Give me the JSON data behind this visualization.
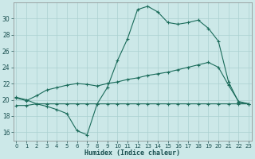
{
  "xlabel": "Humidex (Indice chaleur)",
  "bg_color": "#cce8e8",
  "grid_color": "#aad0d0",
  "line_color": "#1a6b5a",
  "xlim": [
    -0.3,
    23.3
  ],
  "ylim": [
    15.0,
    32.0
  ],
  "xticks": [
    0,
    1,
    2,
    3,
    4,
    5,
    6,
    7,
    8,
    9,
    10,
    11,
    12,
    13,
    14,
    15,
    16,
    17,
    18,
    19,
    20,
    21,
    22,
    23
  ],
  "yticks": [
    16,
    18,
    20,
    22,
    24,
    26,
    28,
    30
  ],
  "line1_x": [
    0,
    1,
    2,
    3,
    4,
    5,
    6,
    7,
    8,
    9,
    10,
    11,
    12,
    13,
    14,
    15,
    16,
    17,
    18,
    19,
    20,
    21,
    22,
    23
  ],
  "line1_y": [
    20.3,
    20.0,
    19.5,
    19.2,
    18.8,
    18.3,
    16.2,
    15.7,
    19.5,
    21.5,
    24.8,
    27.5,
    31.1,
    31.5,
    30.8,
    29.5,
    29.3,
    29.5,
    29.8,
    28.8,
    27.2,
    22.2,
    19.7,
    19.5
  ],
  "line2_x": [
    0,
    1,
    2,
    3,
    4,
    5,
    6,
    7,
    8,
    9,
    10,
    11,
    12,
    13,
    14,
    15,
    16,
    17,
    18,
    19,
    20,
    21,
    22,
    23
  ],
  "line2_y": [
    20.2,
    19.9,
    20.5,
    21.2,
    21.5,
    21.8,
    22.0,
    21.9,
    21.7,
    22.0,
    22.2,
    22.5,
    22.7,
    23.0,
    23.2,
    23.4,
    23.7,
    24.0,
    24.3,
    24.6,
    24.0,
    21.8,
    19.8,
    19.5
  ],
  "line3_x": [
    0,
    1,
    2,
    3,
    4,
    5,
    6,
    7,
    8,
    9,
    10,
    11,
    12,
    13,
    14,
    15,
    16,
    17,
    18,
    19,
    20,
    21,
    22,
    23
  ],
  "line3_y": [
    19.3,
    19.3,
    19.5,
    19.5,
    19.5,
    19.5,
    19.5,
    19.5,
    19.5,
    19.5,
    19.5,
    19.5,
    19.5,
    19.5,
    19.5,
    19.5,
    19.5,
    19.5,
    19.5,
    19.5,
    19.5,
    19.5,
    19.5,
    19.5
  ]
}
